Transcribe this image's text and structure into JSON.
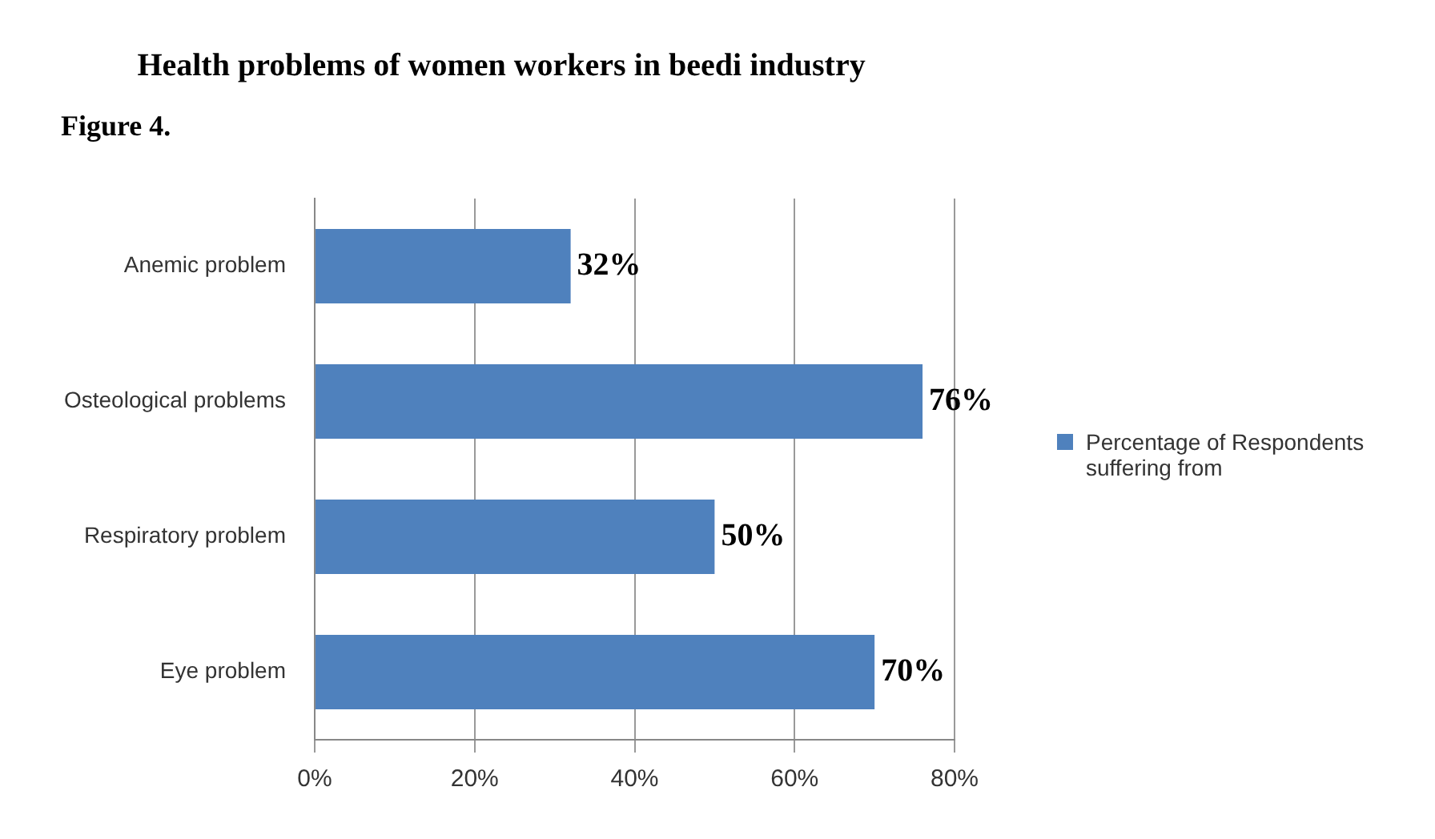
{
  "chart_data": {
    "type": "bar",
    "orientation": "horizontal",
    "title": "Health problems of women workers in beedi industry",
    "annotations": [
      "Figure 4."
    ],
    "categories": [
      "Anemic problem",
      "Osteological problems",
      "Respiratory problem",
      "Eye problem"
    ],
    "series": [
      {
        "name": "Percentage of Respondents suffering from",
        "color": "#4f81bd",
        "values": [
          32,
          76,
          50,
          70
        ],
        "value_labels": [
          "32%",
          "76%",
          "50%",
          "70%"
        ]
      }
    ],
    "xlim": [
      0,
      80
    ],
    "xticks": [
      {
        "value": 0,
        "label": "0%"
      },
      {
        "value": 20,
        "label": "20%"
      },
      {
        "value": 40,
        "label": "40%"
      },
      {
        "value": 60,
        "label": "60%"
      },
      {
        "value": 80,
        "label": "80%"
      }
    ],
    "grid": "x",
    "legend": "right"
  }
}
